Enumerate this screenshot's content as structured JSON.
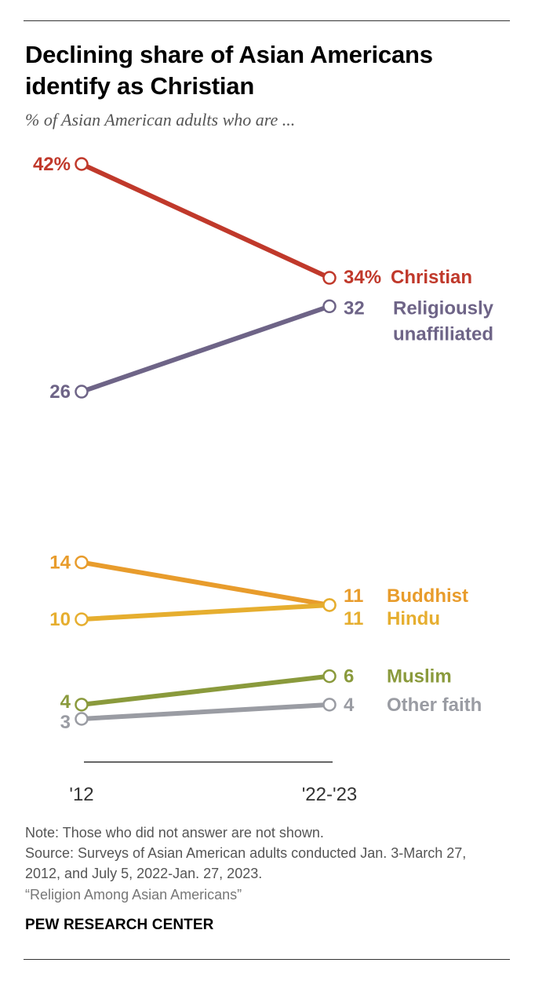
{
  "title": "Declining share of Asian Americans identify as Christian",
  "subtitle": "% of Asian American adults who are ...",
  "chart_data": {
    "type": "line",
    "title": "Declining share of Asian Americans identify as Christian",
    "subtitle": "% of Asian American adults who are ...",
    "x": [
      "'12",
      "'22-'23"
    ],
    "series": [
      {
        "name": "Christian",
        "values": [
          42,
          34
        ],
        "labels": [
          "42%",
          "34%"
        ],
        "color": "#c0392b",
        "name_lines": [
          "Christian"
        ]
      },
      {
        "name": "Religiously unaffiliated",
        "values": [
          26,
          32
        ],
        "labels": [
          "26",
          "32"
        ],
        "color": "#6e6487",
        "name_lines": [
          "Religiously",
          "unaffiliated"
        ]
      },
      {
        "name": "Buddhist",
        "values": [
          14,
          11
        ],
        "labels": [
          "14",
          "11"
        ],
        "color": "#e89c2c",
        "name_lines": [
          "Buddhist"
        ]
      },
      {
        "name": "Hindu",
        "values": [
          10,
          11
        ],
        "labels": [
          "10",
          "11"
        ],
        "color": "#e6ae2f",
        "name_lines": [
          "Hindu"
        ]
      },
      {
        "name": "Muslim",
        "values": [
          4,
          6
        ],
        "labels": [
          "4",
          "6"
        ],
        "color": "#8a9a3c",
        "name_lines": [
          "Muslim"
        ]
      },
      {
        "name": "Other faith",
        "values": [
          3,
          4
        ],
        "labels": [
          "3",
          "4"
        ],
        "color": "#9a9ca3",
        "name_lines": [
          "Other faith"
        ]
      }
    ],
    "ylim": [
      3,
      42
    ],
    "grid": false,
    "legend": "inline labels at right"
  },
  "notes": {
    "note": "Note: Those who did not answer are not shown.",
    "source": "Source: Surveys of Asian American adults conducted Jan. 3-March 27, 2012, and July 5, 2022-Jan. 27, 2023.",
    "report": "“Religion Among Asian Americans”"
  },
  "brand": "PEW RESEARCH CENTER"
}
